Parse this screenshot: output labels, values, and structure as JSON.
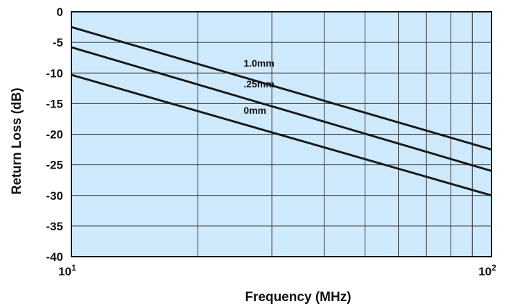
{
  "chart_data": {
    "type": "line",
    "xlabel": "Frequency (MHz)",
    "ylabel": "Return Loss (dB)",
    "x_scale": "log",
    "xlim": [
      10,
      100
    ],
    "ylim": [
      -40,
      0
    ],
    "x_ticks": [
      {
        "value": 10,
        "base": "10",
        "exp": "1"
      },
      {
        "value": 100,
        "base": "10",
        "exp": "2"
      }
    ],
    "y_ticks": [
      0,
      -5,
      -10,
      -15,
      -20,
      -25,
      -30,
      -35,
      -40
    ],
    "grid": true,
    "colors": {
      "plot_bg": "#cfeafd",
      "line": "#1a1a1a",
      "grid": "#2a2a2a"
    },
    "series": [
      {
        "name": "1.0mm",
        "x": [
          10,
          100
        ],
        "y": [
          -2.5,
          -22.5
        ]
      },
      {
        "name": ".25mm",
        "x": [
          10,
          100
        ],
        "y": [
          -5.8,
          -26.0
        ]
      },
      {
        "name": "0mm",
        "x": [
          10,
          100
        ],
        "y": [
          -10.3,
          -30.0
        ]
      }
    ]
  }
}
